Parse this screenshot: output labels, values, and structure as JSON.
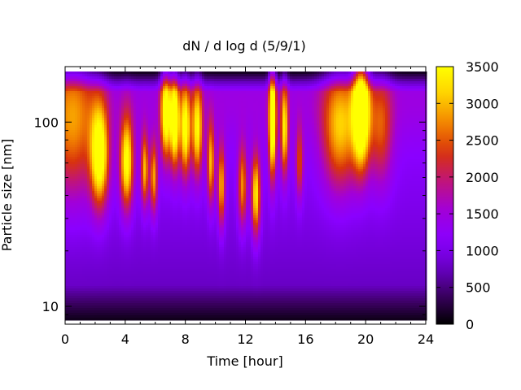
{
  "chart_data": {
    "type": "heatmap",
    "title": "dN / d log d (5/9/1)",
    "xlabel": "Time [hour]",
    "ylabel": "Particle size [nm]",
    "xlim": [
      0,
      24
    ],
    "x_ticks": [
      0,
      4,
      8,
      12,
      16,
      20,
      24
    ],
    "y_scale": "log",
    "ylim": [
      8,
      200
    ],
    "y_ticks": [
      10,
      100
    ],
    "colorbar": {
      "range": [
        0,
        3500
      ],
      "ticks": [
        0,
        500,
        1000,
        1500,
        2000,
        2500,
        3000,
        3500
      ],
      "colormap": [
        "#000000",
        "#3a0060",
        "#6a00c8",
        "#8a00ff",
        "#a200d8",
        "#c0147a",
        "#d8330c",
        "#f28200",
        "#ffd000",
        "#ffff00"
      ]
    },
    "background_level": 700,
    "upper_band_level": 1200,
    "events": [
      {
        "t": 0.5,
        "d": 95,
        "amp": 1500,
        "tw": 1.6,
        "lw": 0.8
      },
      {
        "t": 2.3,
        "d": 65,
        "amp": 2600,
        "tw": 0.6,
        "lw": 0.55
      },
      {
        "t": 4.1,
        "d": 60,
        "amp": 2500,
        "tw": 0.45,
        "lw": 0.5
      },
      {
        "t": 5.3,
        "d": 55,
        "amp": 1900,
        "tw": 0.25,
        "lw": 0.4
      },
      {
        "t": 5.9,
        "d": 50,
        "amp": 1800,
        "tw": 0.25,
        "lw": 0.4
      },
      {
        "t": 6.7,
        "d": 110,
        "amp": 2500,
        "tw": 0.35,
        "lw": 0.5
      },
      {
        "t": 7.3,
        "d": 100,
        "amp": 2700,
        "tw": 0.3,
        "lw": 0.5
      },
      {
        "t": 8.0,
        "d": 90,
        "amp": 2400,
        "tw": 0.35,
        "lw": 0.5
      },
      {
        "t": 8.8,
        "d": 90,
        "amp": 2200,
        "tw": 0.35,
        "lw": 0.5
      },
      {
        "t": 9.7,
        "d": 60,
        "amp": 1900,
        "tw": 0.25,
        "lw": 0.45
      },
      {
        "t": 10.4,
        "d": 45,
        "amp": 1900,
        "tw": 0.25,
        "lw": 0.45
      },
      {
        "t": 11.8,
        "d": 45,
        "amp": 1700,
        "tw": 0.3,
        "lw": 0.45
      },
      {
        "t": 12.7,
        "d": 40,
        "amp": 2300,
        "tw": 0.3,
        "lw": 0.45
      },
      {
        "t": 13.8,
        "d": 100,
        "amp": 3000,
        "tw": 0.25,
        "lw": 0.6
      },
      {
        "t": 14.6,
        "d": 90,
        "amp": 2100,
        "tw": 0.25,
        "lw": 0.5
      },
      {
        "t": 15.6,
        "d": 60,
        "amp": 1300,
        "tw": 0.25,
        "lw": 0.4
      },
      {
        "t": 18.3,
        "d": 90,
        "amp": 1800,
        "tw": 1.2,
        "lw": 0.65
      },
      {
        "t": 19.7,
        "d": 115,
        "amp": 3200,
        "tw": 0.55,
        "lw": 0.6
      },
      {
        "t": 21.0,
        "d": 90,
        "amp": 1200,
        "tw": 0.8,
        "lw": 0.6
      }
    ]
  }
}
